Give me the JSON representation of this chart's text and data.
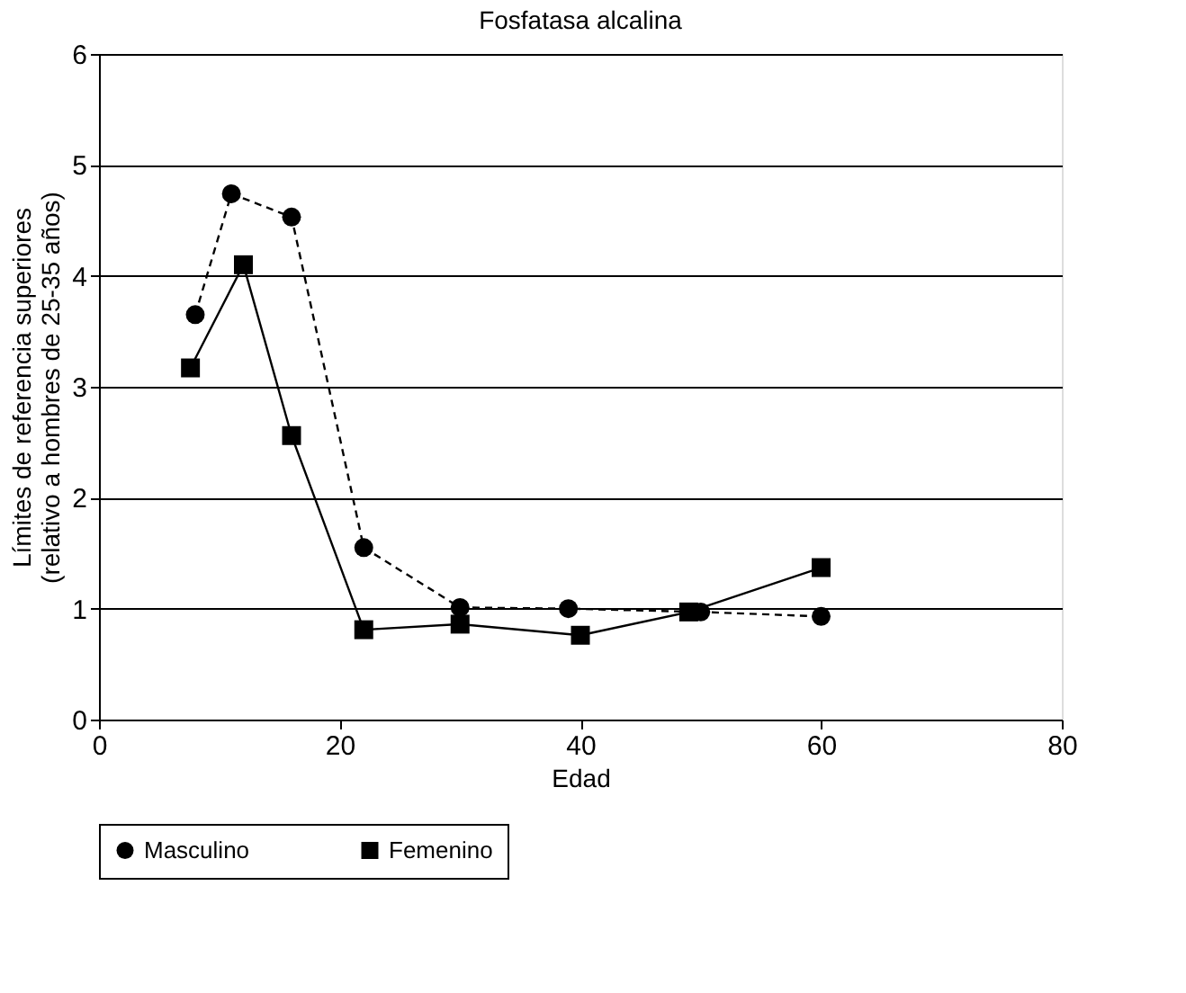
{
  "chart_data": {
    "type": "line",
    "title": "Fosfatasa alcalina",
    "xlabel": "Edad",
    "ylabel": "Límites de referencia superiores\n(relativo a hombres de 25-35 años)",
    "series": [
      {
        "name": "Masculino",
        "color": "#000000",
        "line_style": "dashed",
        "marker": "circle",
        "x": [
          8,
          11,
          16,
          22,
          30,
          39,
          50,
          60
        ],
        "values": [
          3.65,
          4.74,
          4.53,
          1.55,
          1.01,
          1.0,
          0.97,
          0.93
        ]
      },
      {
        "name": "Femenino",
        "color": "#000000",
        "line_style": "solid",
        "marker": "square",
        "x": [
          7.6,
          12,
          16,
          22,
          30,
          40,
          49,
          60
        ],
        "values": [
          3.17,
          4.1,
          2.56,
          0.81,
          0.86,
          0.76,
          0.97,
          1.37
        ]
      }
    ],
    "xlim": [
      0,
      80
    ],
    "xticks": [
      0,
      20,
      40,
      60,
      80
    ],
    "ylim": [
      0,
      6
    ],
    "yticks": [
      0,
      1,
      2,
      3,
      4,
      5,
      6
    ],
    "grid": "y",
    "legend": "bottom"
  }
}
